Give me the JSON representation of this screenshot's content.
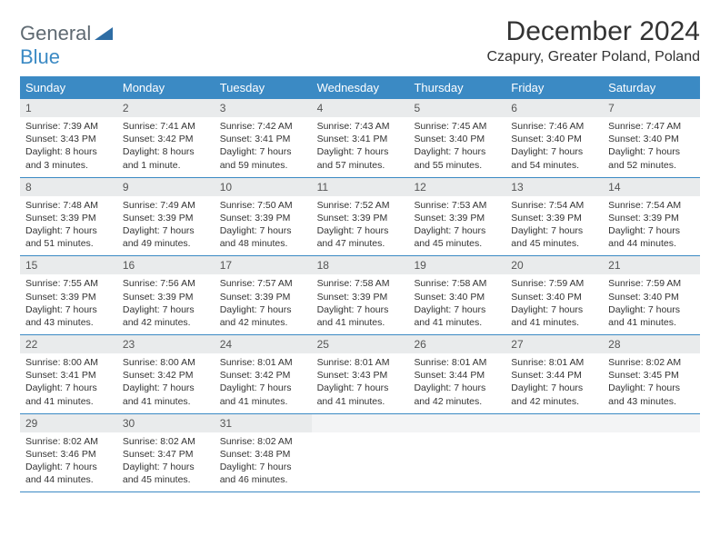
{
  "logo": {
    "text_top": "General",
    "text_bottom": "Blue"
  },
  "title": "December 2024",
  "location": "Czapury, Greater Poland, Poland",
  "colors": {
    "header_bg": "#3b8ac4",
    "header_text": "#ffffff",
    "daynum_bg": "#e9ebec",
    "border": "#3b8ac4",
    "logo_gray": "#5f6a72",
    "logo_blue": "#3b8ac4"
  },
  "day_names": [
    "Sunday",
    "Monday",
    "Tuesday",
    "Wednesday",
    "Thursday",
    "Friday",
    "Saturday"
  ],
  "days": [
    {
      "n": "1",
      "sunrise": "Sunrise: 7:39 AM",
      "sunset": "Sunset: 3:43 PM",
      "daylight": "Daylight: 8 hours and 3 minutes."
    },
    {
      "n": "2",
      "sunrise": "Sunrise: 7:41 AM",
      "sunset": "Sunset: 3:42 PM",
      "daylight": "Daylight: 8 hours and 1 minute."
    },
    {
      "n": "3",
      "sunrise": "Sunrise: 7:42 AM",
      "sunset": "Sunset: 3:41 PM",
      "daylight": "Daylight: 7 hours and 59 minutes."
    },
    {
      "n": "4",
      "sunrise": "Sunrise: 7:43 AM",
      "sunset": "Sunset: 3:41 PM",
      "daylight": "Daylight: 7 hours and 57 minutes."
    },
    {
      "n": "5",
      "sunrise": "Sunrise: 7:45 AM",
      "sunset": "Sunset: 3:40 PM",
      "daylight": "Daylight: 7 hours and 55 minutes."
    },
    {
      "n": "6",
      "sunrise": "Sunrise: 7:46 AM",
      "sunset": "Sunset: 3:40 PM",
      "daylight": "Daylight: 7 hours and 54 minutes."
    },
    {
      "n": "7",
      "sunrise": "Sunrise: 7:47 AM",
      "sunset": "Sunset: 3:40 PM",
      "daylight": "Daylight: 7 hours and 52 minutes."
    },
    {
      "n": "8",
      "sunrise": "Sunrise: 7:48 AM",
      "sunset": "Sunset: 3:39 PM",
      "daylight": "Daylight: 7 hours and 51 minutes."
    },
    {
      "n": "9",
      "sunrise": "Sunrise: 7:49 AM",
      "sunset": "Sunset: 3:39 PM",
      "daylight": "Daylight: 7 hours and 49 minutes."
    },
    {
      "n": "10",
      "sunrise": "Sunrise: 7:50 AM",
      "sunset": "Sunset: 3:39 PM",
      "daylight": "Daylight: 7 hours and 48 minutes."
    },
    {
      "n": "11",
      "sunrise": "Sunrise: 7:52 AM",
      "sunset": "Sunset: 3:39 PM",
      "daylight": "Daylight: 7 hours and 47 minutes."
    },
    {
      "n": "12",
      "sunrise": "Sunrise: 7:53 AM",
      "sunset": "Sunset: 3:39 PM",
      "daylight": "Daylight: 7 hours and 45 minutes."
    },
    {
      "n": "13",
      "sunrise": "Sunrise: 7:54 AM",
      "sunset": "Sunset: 3:39 PM",
      "daylight": "Daylight: 7 hours and 45 minutes."
    },
    {
      "n": "14",
      "sunrise": "Sunrise: 7:54 AM",
      "sunset": "Sunset: 3:39 PM",
      "daylight": "Daylight: 7 hours and 44 minutes."
    },
    {
      "n": "15",
      "sunrise": "Sunrise: 7:55 AM",
      "sunset": "Sunset: 3:39 PM",
      "daylight": "Daylight: 7 hours and 43 minutes."
    },
    {
      "n": "16",
      "sunrise": "Sunrise: 7:56 AM",
      "sunset": "Sunset: 3:39 PM",
      "daylight": "Daylight: 7 hours and 42 minutes."
    },
    {
      "n": "17",
      "sunrise": "Sunrise: 7:57 AM",
      "sunset": "Sunset: 3:39 PM",
      "daylight": "Daylight: 7 hours and 42 minutes."
    },
    {
      "n": "18",
      "sunrise": "Sunrise: 7:58 AM",
      "sunset": "Sunset: 3:39 PM",
      "daylight": "Daylight: 7 hours and 41 minutes."
    },
    {
      "n": "19",
      "sunrise": "Sunrise: 7:58 AM",
      "sunset": "Sunset: 3:40 PM",
      "daylight": "Daylight: 7 hours and 41 minutes."
    },
    {
      "n": "20",
      "sunrise": "Sunrise: 7:59 AM",
      "sunset": "Sunset: 3:40 PM",
      "daylight": "Daylight: 7 hours and 41 minutes."
    },
    {
      "n": "21",
      "sunrise": "Sunrise: 7:59 AM",
      "sunset": "Sunset: 3:40 PM",
      "daylight": "Daylight: 7 hours and 41 minutes."
    },
    {
      "n": "22",
      "sunrise": "Sunrise: 8:00 AM",
      "sunset": "Sunset: 3:41 PM",
      "daylight": "Daylight: 7 hours and 41 minutes."
    },
    {
      "n": "23",
      "sunrise": "Sunrise: 8:00 AM",
      "sunset": "Sunset: 3:42 PM",
      "daylight": "Daylight: 7 hours and 41 minutes."
    },
    {
      "n": "24",
      "sunrise": "Sunrise: 8:01 AM",
      "sunset": "Sunset: 3:42 PM",
      "daylight": "Daylight: 7 hours and 41 minutes."
    },
    {
      "n": "25",
      "sunrise": "Sunrise: 8:01 AM",
      "sunset": "Sunset: 3:43 PM",
      "daylight": "Daylight: 7 hours and 41 minutes."
    },
    {
      "n": "26",
      "sunrise": "Sunrise: 8:01 AM",
      "sunset": "Sunset: 3:44 PM",
      "daylight": "Daylight: 7 hours and 42 minutes."
    },
    {
      "n": "27",
      "sunrise": "Sunrise: 8:01 AM",
      "sunset": "Sunset: 3:44 PM",
      "daylight": "Daylight: 7 hours and 42 minutes."
    },
    {
      "n": "28",
      "sunrise": "Sunrise: 8:02 AM",
      "sunset": "Sunset: 3:45 PM",
      "daylight": "Daylight: 7 hours and 43 minutes."
    },
    {
      "n": "29",
      "sunrise": "Sunrise: 8:02 AM",
      "sunset": "Sunset: 3:46 PM",
      "daylight": "Daylight: 7 hours and 44 minutes."
    },
    {
      "n": "30",
      "sunrise": "Sunrise: 8:02 AM",
      "sunset": "Sunset: 3:47 PM",
      "daylight": "Daylight: 7 hours and 45 minutes."
    },
    {
      "n": "31",
      "sunrise": "Sunrise: 8:02 AM",
      "sunset": "Sunset: 3:48 PM",
      "daylight": "Daylight: 7 hours and 46 minutes."
    }
  ]
}
